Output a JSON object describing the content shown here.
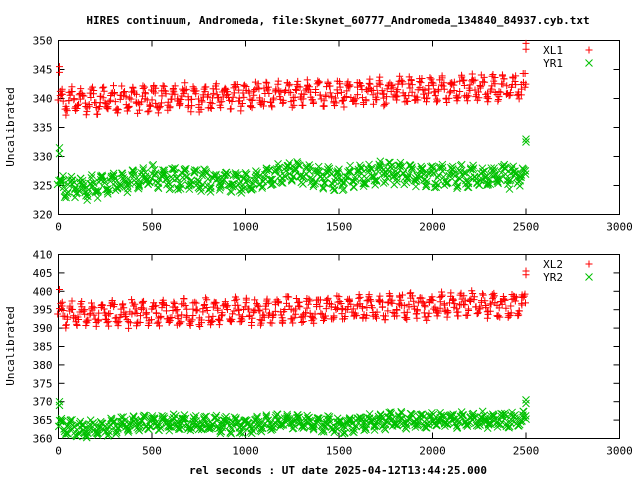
{
  "chart_data": [
    {
      "type": "scatter",
      "title": "HIRES continuum, Andromeda, file:Skynet_60777_Andromeda_134840_84937.cyb.txt",
      "xlabel": "",
      "ylabel": "Uncalibrated",
      "xlim": [
        0,
        3000
      ],
      "ylim": [
        320,
        350
      ],
      "xticks": [
        "0",
        "500",
        "1000",
        "1500",
        "2000",
        "2500",
        "3000"
      ],
      "yticks": [
        "320",
        "325",
        "330",
        "335",
        "340",
        "345",
        "350"
      ],
      "grid": false,
      "legend_position": "top-right",
      "series": [
        {
          "name": "XL1",
          "marker": "plus",
          "color": "#ff0000",
          "x_range": [
            0,
            2500
          ],
          "baseline_knots": [
            [
              0,
              339.5
            ],
            [
              500,
              340.0
            ],
            [
              1000,
              340.5
            ],
            [
              1500,
              341.0
            ],
            [
              2000,
              341.5
            ],
            [
              2500,
              342.0
            ]
          ],
          "oscillation_amplitude": 1.8,
          "oscillation_period": 55,
          "outliers": [
            [
              0,
              345.5
            ],
            [
              0,
              344.5
            ],
            [
              2500,
              348.5
            ],
            [
              2500,
              349.5
            ]
          ]
        },
        {
          "name": "YR1",
          "marker": "cross",
          "color": "#00c000",
          "x_range": [
            0,
            2500
          ],
          "baseline_knots": [
            [
              0,
              325.0
            ],
            [
              150,
              324.5
            ],
            [
              500,
              326.5
            ],
            [
              1000,
              325.5
            ],
            [
              1250,
              327.5
            ],
            [
              1500,
              326.0
            ],
            [
              1750,
              327.5
            ],
            [
              2000,
              326.5
            ],
            [
              2500,
              326.5
            ]
          ],
          "oscillation_amplitude": 1.5,
          "oscillation_period": 55,
          "outliers": [
            [
              0,
              331.5
            ],
            [
              0,
              330.5
            ],
            [
              2500,
              333.0
            ],
            [
              2500,
              332.5
            ]
          ]
        }
      ]
    },
    {
      "type": "scatter",
      "title": "",
      "xlabel": "rel seconds : UT date 2025-04-12T13:44:25.000",
      "ylabel": "Uncalibrated",
      "xlim": [
        0,
        3000
      ],
      "ylim": [
        360,
        410
      ],
      "xticks": [
        "0",
        "500",
        "1000",
        "1500",
        "2000",
        "2500",
        "3000"
      ],
      "yticks": [
        "360",
        "365",
        "370",
        "375",
        "380",
        "385",
        "390",
        "395",
        "400",
        "405",
        "410"
      ],
      "grid": false,
      "legend_position": "top-right",
      "series": [
        {
          "name": "XL2",
          "marker": "plus",
          "color": "#ff0000",
          "x_range": [
            0,
            2500
          ],
          "baseline_knots": [
            [
              0,
              393.5
            ],
            [
              500,
              394.0
            ],
            [
              1000,
              394.5
            ],
            [
              1500,
              395.5
            ],
            [
              2000,
              396.0
            ],
            [
              2500,
              396.5
            ]
          ],
          "oscillation_amplitude": 2.8,
          "oscillation_period": 55,
          "outliers": [
            [
              0,
              400.5
            ],
            [
              2500,
              405.5
            ],
            [
              2500,
              404.5
            ]
          ]
        },
        {
          "name": "YR2",
          "marker": "cross",
          "color": "#00c000",
          "x_range": [
            0,
            2500
          ],
          "baseline_knots": [
            [
              0,
              363.5
            ],
            [
              150,
              362.5
            ],
            [
              500,
              364.5
            ],
            [
              1000,
              363.5
            ],
            [
              1250,
              365.0
            ],
            [
              1500,
              363.5
            ],
            [
              1800,
              365.0
            ],
            [
              2500,
              365.0
            ]
          ],
          "oscillation_amplitude": 1.7,
          "oscillation_period": 55,
          "outliers": [
            [
              0,
              370.0
            ],
            [
              0,
              369.0
            ],
            [
              2500,
              370.5
            ],
            [
              2500,
              369.5
            ]
          ]
        }
      ]
    }
  ]
}
